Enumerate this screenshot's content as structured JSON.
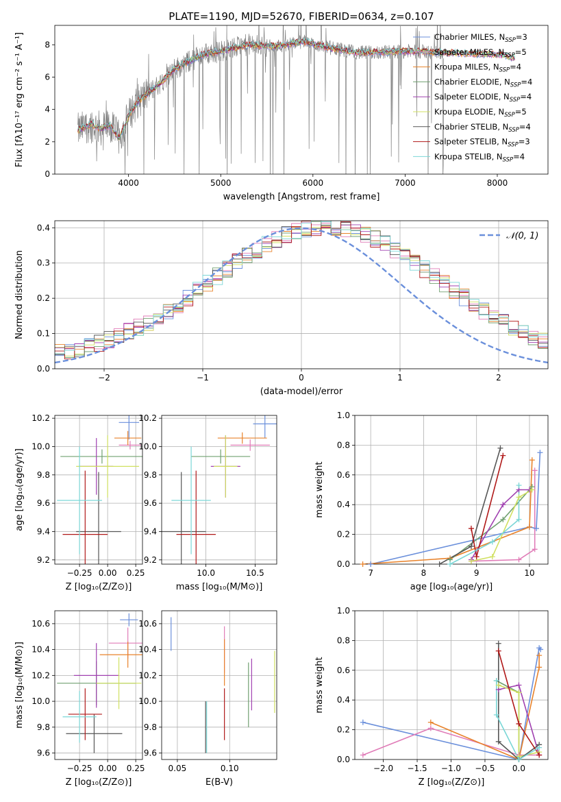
{
  "figure_title": "PLATE=1190, MJD=52670, FIBERID=0634, z=0.107",
  "colors": {
    "data": "#808080",
    "palette": [
      "#6a8fdb",
      "#e07bb7",
      "#e8822a",
      "#70a070",
      "#a040b0",
      "#d0e060",
      "#555555",
      "#b01818",
      "#7ad6d6"
    ],
    "normal": "#6a8fdb"
  },
  "chart_data": [
    {
      "type": "line",
      "id": "spectrum",
      "xlabel": "wavelength [Angstrom, rest frame]",
      "ylabel": "Flux [fλ10⁻¹⁷ erg cm⁻² s⁻¹ A⁻¹]",
      "xlim": [
        3200,
        8550
      ],
      "ylim": [
        0,
        9.2
      ],
      "xticks": [
        4000,
        5000,
        6000,
        7000,
        8000
      ],
      "xtick_labels": [
        "4000",
        "5000",
        "6000",
        "7000",
        "8000"
      ],
      "yticks": [
        0,
        2,
        4,
        6,
        8
      ],
      "ytick_labels": [
        "0",
        "2",
        "4",
        "6",
        "8"
      ],
      "grid": false,
      "legend_position": "right",
      "data_range": [
        3450,
        7420
      ],
      "model_range": [
        3450,
        8200
      ],
      "model_continuum": {
        "x": [
          3450,
          3600,
          3700,
          3800,
          3900,
          4000,
          4100,
          4300,
          4500,
          4800,
          5000,
          5300,
          5600,
          5900,
          6200,
          6500,
          7000,
          7500,
          8000,
          8200
        ],
        "y": [
          2.7,
          3.1,
          2.8,
          3.0,
          2.2,
          3.6,
          4.5,
          5.4,
          6.5,
          7.4,
          7.6,
          8.0,
          7.9,
          8.2,
          7.8,
          7.5,
          7.6,
          7.5,
          7.4,
          7.2
        ]
      },
      "series": [
        {
          "name": "Chabrier MILES, N_SSP=3"
        },
        {
          "name": "Salpeter MILES, N_SSP=5"
        },
        {
          "name": "Kroupa MILES, N_SSP=4"
        },
        {
          "name": "Chabrier ELODIE, N_SSP=4"
        },
        {
          "name": "Salpeter ELODIE, N_SSP=4"
        },
        {
          "name": "Kroupa ELODIE, N_SSP=5"
        },
        {
          "name": "Chabrier STELIB, N_SSP=4"
        },
        {
          "name": "Salpeter STELIB, N_SSP=3"
        },
        {
          "name": "Kroupa STELIB, N_SSP=4"
        }
      ],
      "legend_labels": [
        [
          "Chabrier MILES, N",
          "SSP",
          "=3"
        ],
        [
          "Salpeter MILES, N",
          "SSP",
          "=5"
        ],
        [
          "Kroupa MILES, N",
          "SSP",
          "=4"
        ],
        [
          "Chabrier ELODIE, N",
          "SSP",
          "=4"
        ],
        [
          "Salpeter ELODIE, N",
          "SSP",
          "=4"
        ],
        [
          "Kroupa ELODIE, N",
          "SSP",
          "=5"
        ],
        [
          "Chabrier STELIB, N",
          "SSP",
          "=4"
        ],
        [
          "Salpeter STELIB, N",
          "SSP",
          "=3"
        ],
        [
          "Kroupa STELIB, N",
          "SSP",
          "=4"
        ]
      ]
    },
    {
      "type": "histogram",
      "id": "residuals",
      "xlabel": "(data-model)/error",
      "ylabel": "Normed distribution",
      "xlim": [
        -2.5,
        2.5
      ],
      "ylim": [
        0,
        0.42
      ],
      "xticks": [
        -2,
        -1,
        0,
        1,
        2
      ],
      "xtick_labels": [
        "−2",
        "−1",
        "0",
        "1",
        "2"
      ],
      "yticks": [
        0,
        0.1,
        0.2,
        0.3,
        0.4
      ],
      "ytick_labels": [
        "0.0",
        "0.1",
        "0.2",
        "0.3",
        "0.4"
      ],
      "grid": true,
      "bin_width": 0.1,
      "base_shape": [
        0.04,
        0.05,
        0.07,
        0.08,
        0.1,
        0.13,
        0.16,
        0.19,
        0.21,
        0.23,
        0.25,
        0.27,
        0.29,
        0.31,
        0.33,
        0.35,
        0.35,
        0.33,
        0.3,
        0.28,
        0.25,
        0.22,
        0.19,
        0.16,
        0.14,
        0.12,
        0.1,
        0.08,
        0.06,
        0.05
      ],
      "normal_curve": {
        "name": "𝒩(0, 1)",
        "mean": 0,
        "sigma": 1
      },
      "legend_label": "𝒩(0, 1)"
    },
    {
      "type": "errorbar",
      "id": "age-vs-Z",
      "xlabel": "Z [log₁₀(Z/Z⊙)]",
      "ylabel": "age  [log₁₀(age/yr)]",
      "xlim": [
        -0.47,
        0.31
      ],
      "ylim": [
        9.17,
        10.22
      ],
      "xticks": [
        -0.25,
        0,
        0.25
      ],
      "xtick_labels": [
        "−0.25",
        "0.00",
        "0.25"
      ],
      "yticks": [
        9.2,
        9.4,
        9.6,
        9.8,
        10.0,
        10.2
      ],
      "ytick_labels": [
        "9.2",
        "9.4",
        "9.6",
        "9.8",
        "10.0",
        "10.2"
      ],
      "grid": true,
      "points": [
        {
          "x": 0.19,
          "xerr": 0.09,
          "y": 10.17,
          "yerr": 0.12
        },
        {
          "x": 0.2,
          "xerr": 0.1,
          "y": 10.01,
          "yerr": 0.03
        },
        {
          "x": 0.18,
          "xerr": 0.12,
          "y": 10.06,
          "yerr": 0.05
        },
        {
          "x": -0.05,
          "xerr": 0.37,
          "y": 9.93,
          "yerr": 0.05
        },
        {
          "x": -0.1,
          "xerr": 0.15,
          "y": 9.86,
          "yerr": 0.2
        },
        {
          "x": 0.0,
          "xerr": 0.28,
          "y": 9.86,
          "yerr": 0.22
        },
        {
          "x": -0.08,
          "xerr": 0.2,
          "y": 9.4,
          "yerr": 0.42
        },
        {
          "x": -0.2,
          "xerr": 0.2,
          "y": 9.38,
          "yerr": 0.45
        },
        {
          "x": -0.25,
          "xerr": 0.2,
          "y": 9.62,
          "yerr": 0.38
        }
      ]
    },
    {
      "type": "errorbar",
      "id": "age-vs-mass",
      "xlabel": "mass [log₁₀(M/M⊙)]",
      "ylabel": "",
      "xlim": [
        9.55,
        10.72
      ],
      "ylim": [
        9.17,
        10.22
      ],
      "xticks": [
        10.0,
        10.5
      ],
      "xtick_labels": [
        "10.0",
        "10.5"
      ],
      "yticks": [
        9.2,
        9.4,
        9.6,
        9.8,
        10.0,
        10.2
      ],
      "ytick_labels": [
        "9.2",
        "9.4",
        "9.6",
        "9.8",
        "10.0",
        "10.2"
      ],
      "grid": true,
      "points": [
        {
          "x": 10.6,
          "xerr": 0.12,
          "y": 10.16,
          "yerr": 0.1
        },
        {
          "x": 10.45,
          "xerr": 0.2,
          "y": 10.01,
          "yerr": 0.04
        },
        {
          "x": 10.37,
          "xerr": 0.25,
          "y": 10.06,
          "yerr": 0.04
        },
        {
          "x": 10.15,
          "xerr": 0.3,
          "y": 9.93,
          "yerr": 0.05
        },
        {
          "x": 10.2,
          "xerr": 0.15,
          "y": 9.86,
          "yerr": 0.22
        },
        {
          "x": 10.2,
          "xerr": 0.12,
          "y": 9.86,
          "yerr": 0.22
        },
        {
          "x": 9.75,
          "xerr": 0.25,
          "y": 9.4,
          "yerr": 0.42
        },
        {
          "x": 9.9,
          "xerr": 0.2,
          "y": 9.38,
          "yerr": 0.45
        },
        {
          "x": 9.85,
          "xerr": 0.2,
          "y": 9.62,
          "yerr": 0.38
        }
      ]
    },
    {
      "type": "line",
      "id": "massweight-vs-age",
      "xlabel": "age  [log₁₀(age/yr)]",
      "ylabel": "mass weight",
      "xlim": [
        6.7,
        10.35
      ],
      "ylim": [
        0,
        1.0
      ],
      "xticks": [
        7,
        8,
        9,
        10
      ],
      "xtick_labels": [
        "7",
        "8",
        "9",
        "10"
      ],
      "yticks": [
        0,
        0.2,
        0.4,
        0.6,
        0.8,
        1.0
      ],
      "ytick_labels": [
        "0.0",
        "0.2",
        "0.4",
        "0.6",
        "0.8",
        "1.0"
      ],
      "grid": true,
      "series": [
        {
          "name": "Chabrier MILES",
          "x": [
            7.0,
            10.0,
            10.13,
            10.2
          ],
          "y": [
            0.0,
            0.25,
            0.24,
            0.75
          ]
        },
        {
          "name": "Salpeter MILES",
          "x": [
            8.9,
            9.8,
            10.1,
            10.1
          ],
          "y": [
            0.02,
            0.03,
            0.1,
            0.63
          ]
        },
        {
          "name": "Kroupa MILES",
          "x": [
            6.85,
            8.5,
            10.0,
            10.05
          ],
          "y": [
            0.0,
            0.04,
            0.25,
            0.7
          ]
        },
        {
          "name": "Chabrier ELODIE",
          "x": [
            8.5,
            9.5,
            10.05
          ],
          "y": [
            0.03,
            0.3,
            0.52
          ]
        },
        {
          "name": "Salpeter ELODIE",
          "x": [
            8.9,
            9.5,
            9.8,
            10.0
          ],
          "y": [
            0.03,
            0.4,
            0.5,
            0.5
          ]
        },
        {
          "name": "Kroupa ELODIE",
          "x": [
            8.9,
            9.3,
            9.8,
            10.05
          ],
          "y": [
            0.02,
            0.05,
            0.45,
            0.5
          ]
        },
        {
          "name": "Chabrier STELIB",
          "x": [
            8.3,
            8.9,
            9.45
          ],
          "y": [
            0.0,
            0.12,
            0.78
          ]
        },
        {
          "name": "Salpeter STELIB",
          "x": [
            8.9,
            9.0,
            9.5
          ],
          "y": [
            0.24,
            0.05,
            0.73
          ]
        },
        {
          "name": "Kroupa STELIB",
          "x": [
            8.5,
            9.3,
            9.8,
            9.8
          ],
          "y": [
            0.0,
            0.15,
            0.3,
            0.53
          ]
        }
      ]
    },
    {
      "type": "errorbar",
      "id": "mass-vs-Z",
      "xlabel": "Z [log₁₀(Z/Z⊙)]",
      "ylabel": "mass [log₁₀(M/M⊙)]",
      "xlim": [
        -0.47,
        0.31
      ],
      "ylim": [
        9.55,
        10.7
      ],
      "xticks": [
        -0.25,
        0,
        0.25
      ],
      "xtick_labels": [
        "−0.25",
        "0.00",
        "0.25"
      ],
      "yticks": [
        9.6,
        9.8,
        10.0,
        10.2,
        10.4,
        10.6
      ],
      "ytick_labels": [
        "9.6",
        "9.8",
        "10.0",
        "10.2",
        "10.4",
        "10.6"
      ],
      "grid": true,
      "points": [
        {
          "x": 0.19,
          "xerr": 0.08,
          "y": 10.63,
          "yerr": 0.05
        },
        {
          "x": 0.18,
          "xerr": 0.17,
          "y": 10.45,
          "yerr": 0.12
        },
        {
          "x": 0.18,
          "xerr": 0.25,
          "y": 10.36,
          "yerr": 0.1
        },
        {
          "x": -0.1,
          "xerr": 0.35,
          "y": 10.14,
          "yerr": 0.17
        },
        {
          "x": -0.1,
          "xerr": 0.2,
          "y": 10.2,
          "yerr": 0.25
        },
        {
          "x": 0.1,
          "xerr": 0.2,
          "y": 10.14,
          "yerr": 0.2
        },
        {
          "x": -0.12,
          "xerr": 0.25,
          "y": 9.75,
          "yerr": 0.15
        },
        {
          "x": -0.2,
          "xerr": 0.15,
          "y": 9.9,
          "yerr": 0.2
        },
        {
          "x": -0.25,
          "xerr": 0.15,
          "y": 9.88,
          "yerr": 0.2
        }
      ]
    },
    {
      "type": "errorbar",
      "id": "mass-vs-EBV",
      "xlabel": "E(B-V)",
      "ylabel": "",
      "xlim": [
        0.035,
        0.145
      ],
      "ylim": [
        9.55,
        10.7
      ],
      "xticks": [
        0.05,
        0.1
      ],
      "xtick_labels": [
        "0.05",
        "0.10"
      ],
      "yticks": [
        9.6,
        9.8,
        10.0,
        10.2,
        10.4,
        10.6
      ],
      "ytick_labels": [
        "9.6",
        "9.8",
        "10.0",
        "10.2",
        "10.4",
        "10.6"
      ],
      "grid": true,
      "points": [
        {
          "x": 0.044,
          "xerr": 0,
          "y": 10.52,
          "yerr": 0.13
        },
        {
          "x": 0.095,
          "xerr": 0,
          "y": 10.4,
          "yerr": 0.18
        },
        {
          "x": 0.095,
          "xerr": 0,
          "y": 10.3,
          "yerr": 0.18
        },
        {
          "x": 0.118,
          "xerr": 0,
          "y": 10.05,
          "yerr": 0.25
        },
        {
          "x": 0.121,
          "xerr": 0,
          "y": 10.13,
          "yerr": 0.2
        },
        {
          "x": 0.143,
          "xerr": 0,
          "y": 10.15,
          "yerr": 0.24
        },
        {
          "x": 0.077,
          "xerr": 0,
          "y": 9.8,
          "yerr": 0.2
        },
        {
          "x": 0.095,
          "xerr": 0,
          "y": 9.9,
          "yerr": 0.2
        },
        {
          "x": 0.078,
          "xerr": 0,
          "y": 9.8,
          "yerr": 0.2
        }
      ]
    },
    {
      "type": "line",
      "id": "massweight-vs-Z",
      "xlabel": "Z [log₁₀(Z/Z⊙)]",
      "ylabel": "mass weight",
      "xlim": [
        -2.42,
        0.43
      ],
      "ylim": [
        0,
        1.0
      ],
      "xticks": [
        -2.0,
        -1.5,
        -1.0,
        -0.5,
        0.0
      ],
      "xtick_labels": [
        "−2.0",
        "−1.5",
        "−1.0",
        "−0.5",
        "0.0"
      ],
      "yticks": [
        0,
        0.2,
        0.4,
        0.6,
        0.8,
        1.0
      ],
      "ytick_labels": [
        "0.0",
        "0.2",
        "0.4",
        "0.6",
        "0.8",
        "1.0"
      ],
      "grid": true,
      "series": [
        {
          "name": "Chabrier MILES",
          "x": [
            -2.3,
            0.0,
            0.3,
            0.32
          ],
          "y": [
            0.25,
            0.0,
            0.75,
            0.74
          ]
        },
        {
          "name": "Salpeter MILES",
          "x": [
            -2.3,
            -1.3,
            0.0,
            0.3
          ],
          "y": [
            0.03,
            0.21,
            0.03,
            0.03
          ]
        },
        {
          "name": "Kroupa MILES",
          "x": [
            -1.3,
            0.0,
            0.3,
            0.3
          ],
          "y": [
            0.25,
            0.0,
            0.62,
            0.7
          ]
        },
        {
          "name": "Chabrier ELODIE",
          "x": [
            -0.33,
            0.0,
            0.0
          ],
          "y": [
            0.53,
            0.45,
            0.0
          ]
        },
        {
          "name": "Salpeter ELODIE",
          "x": [
            -0.3,
            0.0,
            0.3
          ],
          "y": [
            0.47,
            0.5,
            0.03
          ]
        },
        {
          "name": "Kroupa ELODIE",
          "x": [
            -0.3,
            0.0,
            0.0,
            0.3
          ],
          "y": [
            0.5,
            0.45,
            0.02,
            0.05
          ]
        },
        {
          "name": "Chabrier STELIB",
          "x": [
            -0.3,
            -0.3,
            0.0,
            0.3
          ],
          "y": [
            0.78,
            0.12,
            0.0,
            0.1
          ]
        },
        {
          "name": "Salpeter STELIB",
          "x": [
            -0.3,
            0.0,
            0.3
          ],
          "y": [
            0.73,
            0.24,
            0.03
          ]
        },
        {
          "name": "Kroupa STELIB",
          "x": [
            -0.33,
            -0.33,
            0.0,
            0.3
          ],
          "y": [
            0.53,
            0.3,
            0.0,
            0.08
          ]
        }
      ]
    }
  ]
}
